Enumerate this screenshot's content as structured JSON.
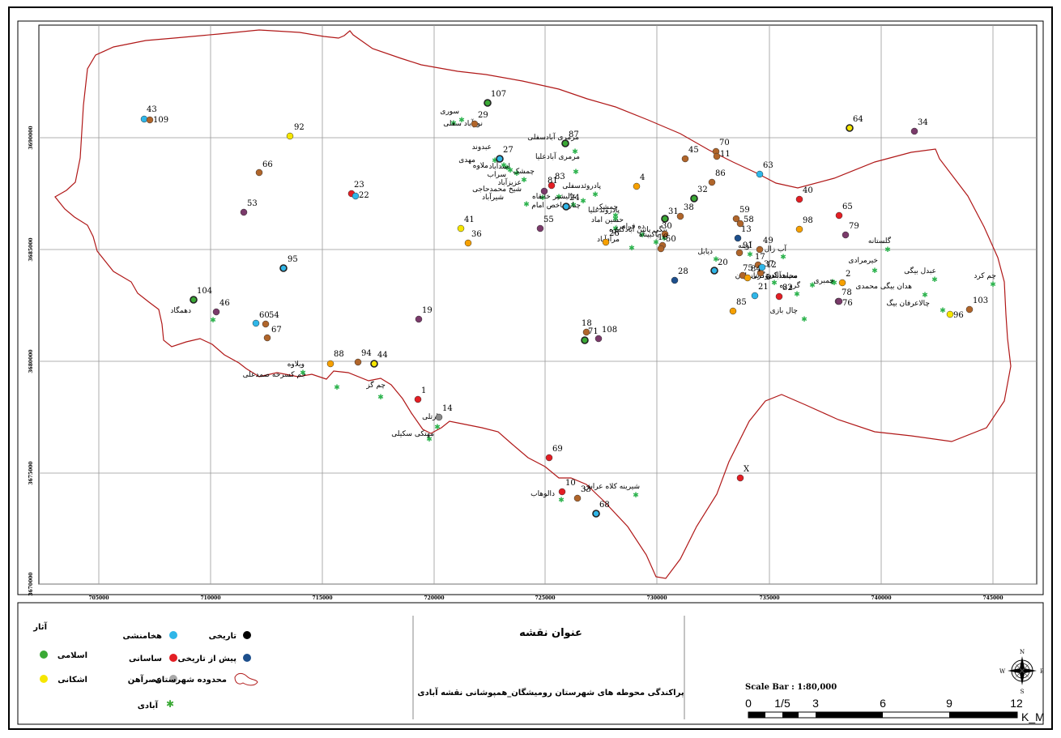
{
  "map": {
    "title": "عنوان نقشه",
    "subtitle": "پراکندگی محوطه های شهرستان رومیشگان_همپوشانی نقشه آبادی",
    "x_ticks": [
      "705000",
      "710000",
      "715000",
      "720000",
      "725000",
      "730000",
      "735000",
      "740000",
      "745000"
    ],
    "y_ticks": [
      "3690000",
      "3685000",
      "3680000",
      "3675000",
      "3670000"
    ],
    "sites": [
      {
        "id": "43",
        "color": "#2fb6e8",
        "ring": false
      },
      {
        "id": "109",
        "color": "#b0652a",
        "ring": false
      },
      {
        "id": "92",
        "color": "#f6e600",
        "ring": false
      },
      {
        "id": "66",
        "color": "#b0652a",
        "ring": false
      },
      {
        "id": "53",
        "color": "#7a3a6a",
        "ring": false
      },
      {
        "id": "23",
        "color": "#e31e24",
        "ring": false
      },
      {
        "id": "22",
        "color": "#2fb6e8",
        "ring": false
      },
      {
        "id": "95",
        "color": "#2fb6e8",
        "ring": true
      },
      {
        "id": "104",
        "color": "#3aa935",
        "ring": true
      },
      {
        "id": "46",
        "color": "#7a3a6a",
        "ring": false
      },
      {
        "id": "60",
        "color": "#2fb6e8",
        "ring": false
      },
      {
        "id": "54",
        "color": "#b0652a",
        "ring": false
      },
      {
        "id": "67",
        "color": "#b0652a",
        "ring": false
      },
      {
        "id": "88",
        "color": "#f6a000",
        "ring": false
      },
      {
        "id": "94",
        "color": "#b0652a",
        "ring": false
      },
      {
        "id": "44",
        "color": "#f6e600",
        "ring": true
      },
      {
        "id": "41",
        "color": "#f6e600",
        "ring": false
      },
      {
        "id": "36",
        "color": "#f6a000",
        "ring": false
      },
      {
        "id": "19",
        "color": "#7a3a6a",
        "ring": false
      },
      {
        "id": "1",
        "color": "#e31e24",
        "ring": false
      },
      {
        "id": "14",
        "color": "#888888",
        "ring": false
      },
      {
        "id": "107",
        "color": "#3aa935",
        "ring": true
      },
      {
        "id": "29",
        "color": "#b0652a",
        "ring": false
      },
      {
        "id": "27",
        "color": "#2fb6e8",
        "ring": true
      },
      {
        "id": "87",
        "color": "#3aa935",
        "ring": true
      },
      {
        "id": "83",
        "color": "#e31e24",
        "ring": false
      },
      {
        "id": "81",
        "color": "#7a3a6a",
        "ring": false
      },
      {
        "id": "24",
        "color": "#2fb6e8",
        "ring": true
      },
      {
        "id": "55",
        "color": "#7a3a6a",
        "ring": false
      },
      {
        "id": "4",
        "color": "#f6a000",
        "ring": false
      },
      {
        "id": "26",
        "color": "#f6a000",
        "ring": false
      },
      {
        "id": "18",
        "color": "#b0652a",
        "ring": false
      },
      {
        "id": "71",
        "color": "#3aa935",
        "ring": true
      },
      {
        "id": "108",
        "color": "#7a3a6a",
        "ring": false
      },
      {
        "id": "69",
        "color": "#e31e24",
        "ring": false
      },
      {
        "id": "10",
        "color": "#e31e24",
        "ring": false
      },
      {
        "id": "33",
        "color": "#b0652a",
        "ring": false
      },
      {
        "id": "68",
        "color": "#2fb6e8",
        "ring": true
      },
      {
        "id": "45",
        "color": "#b0652a",
        "ring": false
      },
      {
        "id": "70",
        "color": "#b0652a",
        "ring": false
      },
      {
        "id": "11",
        "color": "#b0652a",
        "ring": false
      },
      {
        "id": "32",
        "color": "#3aa935",
        "ring": true
      },
      {
        "id": "86",
        "color": "#b0652a",
        "ring": false
      },
      {
        "id": "38",
        "color": "#b0652a",
        "ring": false
      },
      {
        "id": "31",
        "color": "#3aa935",
        "ring": true
      },
      {
        "id": "30",
        "color": "#b0652a",
        "ring": false
      },
      {
        "id": "16",
        "color": "#b0652a",
        "ring": false
      },
      {
        "id": "50",
        "color": "#b0652a",
        "ring": false
      },
      {
        "id": "28",
        "color": "#1d4f8c",
        "ring": false
      },
      {
        "id": "63",
        "color": "#2fb6e8",
        "ring": false
      },
      {
        "id": "59",
        "color": "#b0652a",
        "ring": false
      },
      {
        "id": "58",
        "color": "#b0652a",
        "ring": false
      },
      {
        "id": "13",
        "color": "#1d4f8c",
        "ring": false
      },
      {
        "id": "91",
        "color": "#b0652a",
        "ring": false
      },
      {
        "id": "49",
        "color": "#b0652a",
        "ring": false
      },
      {
        "id": "20",
        "color": "#2fb6e8",
        "ring": true
      },
      {
        "id": "17",
        "color": "#b0652a",
        "ring": false
      },
      {
        "id": "37",
        "color": "#b0652a",
        "ring": false
      },
      {
        "id": "75",
        "color": "#b0652a",
        "ring": false
      },
      {
        "id": "84",
        "color": "#f6a000",
        "ring": false
      },
      {
        "id": "12",
        "color": "#2fb6e8",
        "ring": false
      },
      {
        "id": "21",
        "color": "#2fb6e8",
        "ring": false
      },
      {
        "id": "82",
        "color": "#e31e24",
        "ring": false
      },
      {
        "id": "85",
        "color": "#f6a000",
        "ring": false
      },
      {
        "id": "40",
        "color": "#e31e24",
        "ring": false
      },
      {
        "id": "65",
        "color": "#e31e24",
        "ring": false
      },
      {
        "id": "98",
        "color": "#f6a000",
        "ring": false
      },
      {
        "id": "79",
        "color": "#7a3a6a",
        "ring": false
      },
      {
        "id": "2",
        "color": "#f6a000",
        "ring": false
      },
      {
        "id": "78",
        "color": "#7a3a6a",
        "ring": false
      },
      {
        "id": "76",
        "color": "#7a3a6a",
        "ring": false
      },
      {
        "id": "64",
        "color": "#f6e600",
        "ring": true
      },
      {
        "id": "34",
        "color": "#7a3a6a",
        "ring": false
      },
      {
        "id": "103",
        "color": "#b0652a",
        "ring": false
      },
      {
        "id": "96",
        "color": "#f6e600",
        "ring": false
      },
      {
        "id": "X",
        "color": "#e31e24",
        "ring": false
      }
    ],
    "villages": [
      {
        "name": "نورآباد سفلی"
      },
      {
        "name": "سوری"
      },
      {
        "name": "عبدوند"
      },
      {
        "name": "مهدی"
      },
      {
        "name": "ملاوه"
      },
      {
        "name": "اسدآباد"
      },
      {
        "name": "سراب"
      },
      {
        "name": "چمشک"
      },
      {
        "name": "جم کسرخه صمدعلی"
      },
      {
        "name": "چم گز"
      },
      {
        "name": "دارتلی"
      },
      {
        "name": "مهتکی سکیلی"
      },
      {
        "name": "مرمری آبادسفلی"
      },
      {
        "name": "مرمری آبادعلیا"
      },
      {
        "name": "عزیزآباد"
      },
      {
        "name": "شیخ محمدحاجی"
      },
      {
        "name": "شیرآباد"
      },
      {
        "name": "عالیشیر خانقاه"
      },
      {
        "name": "پادروئدسفلی"
      },
      {
        "name": "چنارشاخص امام"
      },
      {
        "name": "چمشک"
      },
      {
        "name": "پادروئدعلیا"
      },
      {
        "name": "حسین اماد"
      },
      {
        "name": "مرادآباد"
      },
      {
        "name": "ده فرامرز"
      },
      {
        "name": "پاکیپناه"
      },
      {
        "name": "بیگی پائین آبادگنیزه"
      },
      {
        "name": "دیابل"
      },
      {
        "name": "آوینه"
      },
      {
        "name": "گلستانه"
      },
      {
        "name": "کرچ"
      },
      {
        "name": "آب زال"
      },
      {
        "name": "سپاهداندو کانی بابان"
      },
      {
        "name": "محمدآباددوگرتانه"
      },
      {
        "name": "گرو زه"
      },
      {
        "name": "چال بازی"
      },
      {
        "name": "چم کرد"
      },
      {
        "name": "خیرمرادی"
      },
      {
        "name": "عبدل بیگی"
      },
      {
        "name": "هدان بیگی محمدی"
      },
      {
        "name": "چالاعرفان بیگ"
      },
      {
        "name": "ویلاوه"
      },
      {
        "name": "دهمگاد"
      },
      {
        "name": "شیرینه کلاه عراش"
      },
      {
        "name": "دالوهاب"
      },
      {
        "name": "چمبری"
      }
    ],
    "scale_bar": {
      "label": "Scale Bar : 1:80,000",
      "ticks": [
        "0",
        "1/5",
        "3",
        "6",
        "9",
        "12"
      ],
      "unit": "K_M"
    },
    "compass": {
      "n": "N",
      "s": "S",
      "e": "E",
      "w": "W"
    }
  },
  "legend": {
    "title": "آثار",
    "items": [
      {
        "label": "هخامنشی",
        "color": "#2fb6e8",
        "kind": "dot"
      },
      {
        "label": "تاریخی",
        "color": "#000000",
        "kind": "dot"
      },
      {
        "label": "پیش از تاریخی",
        "color": "#1d4f8c",
        "kind": "dot"
      },
      {
        "label": "ساسانی",
        "color": "#e31e24",
        "kind": "dot"
      },
      {
        "label": "اسلامی",
        "color": "#3aa935",
        "kind": "dot"
      },
      {
        "label": "عصرآهن",
        "color": "#a8a8a8",
        "kind": "dot"
      },
      {
        "label": "اشکانی",
        "color": "#f6e600",
        "kind": "dot"
      },
      {
        "label": "محدوده شهرستان",
        "color": "#b01010",
        "kind": "boundary"
      },
      {
        "label": "آبادی",
        "color": "#3aa935",
        "kind": "star"
      }
    ]
  }
}
